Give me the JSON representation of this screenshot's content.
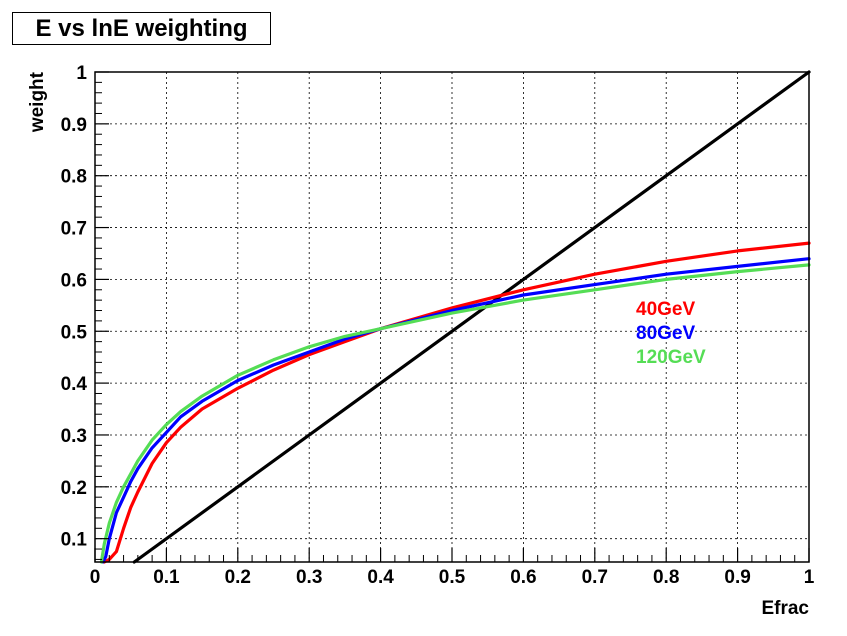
{
  "chart_data": {
    "type": "line",
    "title": "E vs lnE weighting",
    "xlabel": "Efrac",
    "ylabel": "weight",
    "xlim": [
      0,
      1
    ],
    "ylim": [
      0.055,
      1
    ],
    "xticks": [
      0,
      0.1,
      0.2,
      0.3,
      0.4,
      0.5,
      0.6,
      0.7,
      0.8,
      0.9,
      1
    ],
    "yticks": [
      0.1,
      0.2,
      0.3,
      0.4,
      0.5,
      0.6,
      0.7,
      0.8,
      0.9,
      1
    ],
    "grid": true,
    "legend_position": "right",
    "series": [
      {
        "name": "",
        "color": "#000000",
        "x": [
          0.055,
          1.0
        ],
        "y": [
          0.055,
          1.0
        ]
      },
      {
        "name": "40GeV",
        "color": "#ff0000",
        "x": [
          0.013,
          0.02,
          0.03,
          0.04,
          0.05,
          0.06,
          0.08,
          0.1,
          0.12,
          0.15,
          0.2,
          0.25,
          0.3,
          0.35,
          0.4,
          0.5,
          0.6,
          0.7,
          0.8,
          0.9,
          1.0
        ],
        "y": [
          0.055,
          0.06,
          0.075,
          0.12,
          0.16,
          0.19,
          0.245,
          0.285,
          0.315,
          0.35,
          0.39,
          0.425,
          0.455,
          0.48,
          0.505,
          0.545,
          0.58,
          0.61,
          0.635,
          0.655,
          0.67
        ]
      },
      {
        "name": "80GeV",
        "color": "#0000ff",
        "x": [
          0.011,
          0.015,
          0.02,
          0.03,
          0.04,
          0.05,
          0.06,
          0.08,
          0.1,
          0.12,
          0.15,
          0.2,
          0.25,
          0.3,
          0.35,
          0.4,
          0.5,
          0.6,
          0.7,
          0.8,
          0.9,
          1.0
        ],
        "y": [
          0.055,
          0.065,
          0.1,
          0.15,
          0.18,
          0.21,
          0.235,
          0.275,
          0.305,
          0.335,
          0.365,
          0.405,
          0.435,
          0.46,
          0.485,
          0.505,
          0.54,
          0.57,
          0.59,
          0.61,
          0.625,
          0.64
        ]
      },
      {
        "name": "120GeV",
        "color": "#55dd55",
        "x": [
          0.009,
          0.013,
          0.02,
          0.03,
          0.04,
          0.05,
          0.06,
          0.08,
          0.1,
          0.12,
          0.15,
          0.2,
          0.25,
          0.3,
          0.35,
          0.4,
          0.5,
          0.6,
          0.7,
          0.8,
          0.9,
          1.0
        ],
        "y": [
          0.055,
          0.09,
          0.13,
          0.17,
          0.2,
          0.225,
          0.25,
          0.29,
          0.32,
          0.345,
          0.375,
          0.415,
          0.445,
          0.47,
          0.49,
          0.505,
          0.535,
          0.56,
          0.58,
          0.6,
          0.615,
          0.628
        ]
      }
    ]
  }
}
